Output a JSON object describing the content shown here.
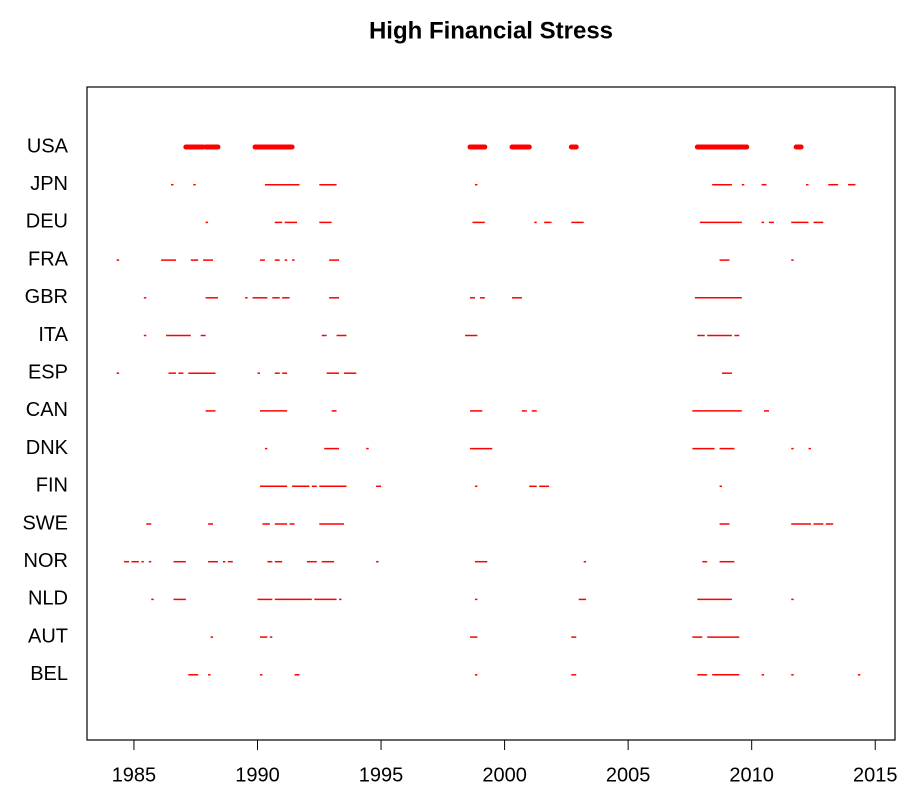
{
  "chart_data": {
    "type": "timeline",
    "title": "High Financial Stress",
    "color": "#ff0000",
    "xlim": [
      1983.1,
      2015.8
    ],
    "xticks": [
      1985,
      1990,
      1995,
      2000,
      2005,
      2010,
      2015
    ],
    "categories": [
      "USA",
      "JPN",
      "DEU",
      "FRA",
      "GBR",
      "ITA",
      "ESP",
      "CAN",
      "DNK",
      "FIN",
      "SWE",
      "NOR",
      "NLD",
      "AUT",
      "BEL"
    ],
    "line_widths": [
      5,
      1.5,
      1.5,
      1.5,
      1.5,
      1.5,
      1.5,
      1.5,
      1.5,
      1.5,
      1.5,
      1.5,
      1.5,
      1.5,
      1.5
    ],
    "periods": [
      [
        [
          1987.1,
          1987.8
        ],
        [
          1987.9,
          1988.4
        ],
        [
          1989.9,
          1991.4
        ],
        [
          1998.6,
          1999.2
        ],
        [
          2000.3,
          2001.0
        ],
        [
          2002.7,
          2002.9
        ],
        [
          2007.8,
          2009.8
        ],
        [
          2011.8,
          2012.0
        ]
      ],
      [
        [
          1986.5,
          1986.6
        ],
        [
          1987.4,
          1987.5
        ],
        [
          1990.3,
          1991.7
        ],
        [
          1992.5,
          1993.2
        ],
        [
          1998.8,
          1998.9
        ],
        [
          2008.4,
          2009.2
        ],
        [
          2009.6,
          2009.7
        ],
        [
          2010.4,
          2010.6
        ],
        [
          2012.2,
          2012.3
        ],
        [
          2013.1,
          2013.5
        ],
        [
          2013.9,
          2014.2
        ]
      ],
      [
        [
          1987.9,
          1988.0
        ],
        [
          1990.7,
          1991.0
        ],
        [
          1991.1,
          1991.6
        ],
        [
          1992.5,
          1993.0
        ],
        [
          1998.7,
          1999.2
        ],
        [
          2001.2,
          2001.3
        ],
        [
          2001.6,
          2001.9
        ],
        [
          2002.7,
          2003.2
        ],
        [
          2007.9,
          2009.6
        ],
        [
          2010.4,
          2010.5
        ],
        [
          2010.7,
          2010.9
        ],
        [
          2011.6,
          2012.3
        ],
        [
          2012.5,
          2012.9
        ]
      ],
      [
        [
          1984.3,
          1984.4
        ],
        [
          1986.1,
          1986.7
        ],
        [
          1987.3,
          1987.6
        ],
        [
          1987.8,
          1988.2
        ],
        [
          1990.1,
          1990.3
        ],
        [
          1990.7,
          1990.9
        ],
        [
          1991.1,
          1991.2
        ],
        [
          1991.4,
          1991.5
        ],
        [
          1992.9,
          1993.3
        ],
        [
          2008.7,
          2009.1
        ],
        [
          2011.6,
          2011.7
        ]
      ],
      [
        [
          1985.4,
          1985.5
        ],
        [
          1987.9,
          1988.4
        ],
        [
          1989.5,
          1989.6
        ],
        [
          1989.8,
          1990.4
        ],
        [
          1990.6,
          1990.9
        ],
        [
          1991.0,
          1991.3
        ],
        [
          1992.9,
          1993.3
        ],
        [
          1998.6,
          1998.8
        ],
        [
          1999.0,
          1999.2
        ],
        [
          2000.3,
          2000.7
        ],
        [
          2007.7,
          2009.6
        ]
      ],
      [
        [
          1985.4,
          1985.5
        ],
        [
          1986.3,
          1987.3
        ],
        [
          1987.7,
          1987.9
        ],
        [
          1992.6,
          1992.8
        ],
        [
          1993.2,
          1993.6
        ],
        [
          1998.4,
          1998.9
        ],
        [
          2007.8,
          2008.1
        ],
        [
          2008.2,
          2009.2
        ],
        [
          2009.3,
          2009.5
        ]
      ],
      [
        [
          1984.3,
          1984.4
        ],
        [
          1986.4,
          1986.7
        ],
        [
          1986.8,
          1987.0
        ],
        [
          1987.2,
          1988.3
        ],
        [
          1990.0,
          1990.1
        ],
        [
          1990.7,
          1990.9
        ],
        [
          1991.0,
          1991.2
        ],
        [
          1992.8,
          1993.3
        ],
        [
          1993.5,
          1994.0
        ],
        [
          2008.8,
          2009.2
        ]
      ],
      [
        [
          1987.9,
          1988.3
        ],
        [
          1990.1,
          1991.2
        ],
        [
          1993.0,
          1993.2
        ],
        [
          1998.6,
          1999.1
        ],
        [
          2000.7,
          2000.9
        ],
        [
          2001.1,
          2001.3
        ],
        [
          2007.6,
          2009.6
        ],
        [
          2010.5,
          2010.7
        ]
      ],
      [
        [
          1990.3,
          1990.4
        ],
        [
          1992.7,
          1993.3
        ],
        [
          1994.4,
          1994.5
        ],
        [
          1998.6,
          1999.5
        ],
        [
          2007.6,
          2008.5
        ],
        [
          2008.7,
          2009.3
        ],
        [
          2011.6,
          2011.7
        ],
        [
          2012.3,
          2012.4
        ]
      ],
      [
        [
          1990.1,
          1991.2
        ],
        [
          1991.4,
          1992.1
        ],
        [
          1992.2,
          1992.4
        ],
        [
          1992.5,
          1993.6
        ],
        [
          1994.8,
          1995.0
        ],
        [
          1998.8,
          1998.9
        ],
        [
          2001.0,
          2001.3
        ],
        [
          2001.4,
          2001.8
        ],
        [
          2008.7,
          2008.8
        ]
      ],
      [
        [
          1985.5,
          1985.7
        ],
        [
          1988.0,
          1988.2
        ],
        [
          1990.2,
          1990.5
        ],
        [
          1990.7,
          1991.2
        ],
        [
          1991.3,
          1991.5
        ],
        [
          1992.5,
          1993.5
        ],
        [
          2008.7,
          2009.1
        ],
        [
          2011.6,
          2012.4
        ],
        [
          2012.5,
          2012.9
        ],
        [
          2013.0,
          2013.3
        ]
      ],
      [
        [
          1984.6,
          1984.8
        ],
        [
          1984.9,
          1985.2
        ],
        [
          1985.3,
          1985.4
        ],
        [
          1985.6,
          1985.7
        ],
        [
          1986.6,
          1987.1
        ],
        [
          1988.0,
          1988.4
        ],
        [
          1988.6,
          1988.7
        ],
        [
          1988.8,
          1989.0
        ],
        [
          1990.4,
          1990.6
        ],
        [
          1990.7,
          1991.0
        ],
        [
          1992.0,
          1992.4
        ],
        [
          1992.6,
          1993.1
        ],
        [
          1994.8,
          1994.9
        ],
        [
          1998.8,
          1999.3
        ],
        [
          2003.2,
          2003.3
        ],
        [
          2008.0,
          2008.2
        ],
        [
          2008.7,
          2009.3
        ]
      ],
      [
        [
          1985.7,
          1985.8
        ],
        [
          1986.6,
          1987.1
        ],
        [
          1990.0,
          1990.6
        ],
        [
          1990.7,
          1992.2
        ],
        [
          1992.3,
          1993.2
        ],
        [
          1993.3,
          1993.4
        ],
        [
          1998.8,
          1998.9
        ],
        [
          2003.0,
          2003.3
        ],
        [
          2007.8,
          2009.2
        ],
        [
          2011.6,
          2011.7
        ]
      ],
      [
        [
          1988.1,
          1988.2
        ],
        [
          1990.1,
          1990.4
        ],
        [
          1990.5,
          1990.6
        ],
        [
          1998.6,
          1998.9
        ],
        [
          2002.7,
          2002.9
        ],
        [
          2007.6,
          2008.0
        ],
        [
          2008.2,
          2009.5
        ]
      ],
      [
        [
          1987.2,
          1987.6
        ],
        [
          1988.0,
          1988.1
        ],
        [
          1990.1,
          1990.2
        ],
        [
          1991.5,
          1991.7
        ],
        [
          1998.8,
          1998.9
        ],
        [
          2002.7,
          2002.9
        ],
        [
          2007.8,
          2008.2
        ],
        [
          2008.4,
          2009.5
        ],
        [
          2010.4,
          2010.5
        ],
        [
          2011.6,
          2011.7
        ],
        [
          2014.3,
          2014.4
        ]
      ]
    ]
  }
}
